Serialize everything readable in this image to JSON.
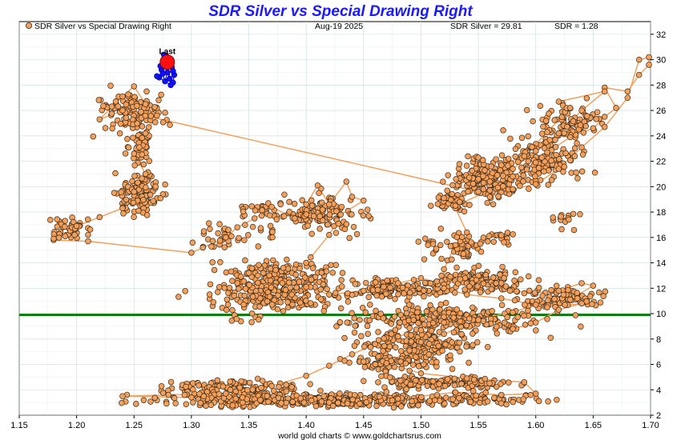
{
  "chart_data": {
    "type": "scatter",
    "title": "SDR Silver vs Special Drawing Right",
    "legend_label": "SDR Silver vs Special Drawing Right",
    "legend_placement": "top-left",
    "date_label": "Aug-19  2025",
    "silver_readout": "SDR Silver = 29.81",
    "sdr_readout": "SDR = 1.28",
    "last_label": "Last",
    "credit": "world gold charts © www.goldchartsrus.com",
    "xlim": [
      1.15,
      1.7
    ],
    "ylim": [
      2,
      33
    ],
    "x_ticks": [
      "1.15",
      "1.20",
      "1.25",
      "1.30",
      "1.35",
      "1.40",
      "1.45",
      "1.50",
      "1.55",
      "1.60",
      "1.65",
      "1.70"
    ],
    "y_ticks": [
      "2",
      "4",
      "6",
      "8",
      "10",
      "12",
      "14",
      "16",
      "18",
      "20",
      "22",
      "24",
      "26",
      "28",
      "30",
      "32"
    ],
    "grid": true,
    "reference_line_y": 9.9,
    "colors": {
      "points_fill": "#f5a05a",
      "points_stroke": "#3a2a1a",
      "trail_line": "#f5a05a",
      "recent_points": "#1010ff",
      "last_point": "#ff1010",
      "reference_line": "#0a7a0a",
      "title": "#1a1aff",
      "grid": "#c8dcdc"
    },
    "last_point": {
      "x": 1.279,
      "y": 29.81
    },
    "recent_points": [
      [
        1.272,
        28.6
      ],
      [
        1.274,
        29.2
      ],
      [
        1.276,
        29.8
      ],
      [
        1.278,
        30.3
      ],
      [
        1.281,
        29.9
      ],
      [
        1.283,
        29.4
      ],
      [
        1.285,
        28.8
      ],
      [
        1.284,
        28.2
      ],
      [
        1.281,
        28.5
      ],
      [
        1.279,
        29.0
      ],
      [
        1.277,
        28.3
      ],
      [
        1.275,
        28.9
      ],
      [
        1.273,
        29.5
      ],
      [
        1.276,
        30.4
      ],
      [
        1.279,
        30.1
      ],
      [
        1.282,
        28.0
      ],
      [
        1.27,
        28.7
      ],
      [
        1.284,
        29.1
      ]
    ],
    "trail_path": [
      [
        1.18,
        15.8
      ],
      [
        1.21,
        15.7
      ],
      [
        1.3,
        14.8
      ],
      [
        1.31,
        15.2
      ],
      [
        1.33,
        16.0
      ],
      [
        1.34,
        16.8
      ],
      [
        1.355,
        17.5
      ],
      [
        1.37,
        18.4
      ],
      [
        1.39,
        17.5
      ],
      [
        1.4,
        18.6
      ],
      [
        1.41,
        20.1
      ],
      [
        1.42,
        18.6
      ],
      [
        1.435,
        20.4
      ],
      [
        1.44,
        19.2
      ],
      [
        1.45,
        18.9
      ],
      [
        1.43,
        17.8
      ],
      [
        1.42,
        16.2
      ],
      [
        1.4,
        14.0
      ],
      [
        1.38,
        13.6
      ],
      [
        1.35,
        13.2
      ],
      [
        1.34,
        12.4
      ],
      [
        1.36,
        11.2
      ],
      [
        1.38,
        10.2
      ],
      [
        1.4,
        12.1
      ],
      [
        1.42,
        11.5
      ],
      [
        1.45,
        11.8
      ],
      [
        1.48,
        12.4
      ],
      [
        1.5,
        12.8
      ],
      [
        1.52,
        12.3
      ],
      [
        1.55,
        13.0
      ],
      [
        1.57,
        12.4
      ],
      [
        1.59,
        11.6
      ],
      [
        1.62,
        11.8
      ],
      [
        1.64,
        12.4
      ],
      [
        1.65,
        12.2
      ],
      [
        1.63,
        11.1
      ],
      [
        1.6,
        10.7
      ],
      [
        1.58,
        10.1
      ],
      [
        1.55,
        9.6
      ],
      [
        1.52,
        9.3
      ],
      [
        1.5,
        8.7
      ],
      [
        1.48,
        8.2
      ],
      [
        1.46,
        7.6
      ],
      [
        1.44,
        6.8
      ],
      [
        1.42,
        5.9
      ],
      [
        1.4,
        5.1
      ],
      [
        1.37,
        4.3
      ],
      [
        1.33,
        3.7
      ],
      [
        1.28,
        3.6
      ],
      [
        1.24,
        3.5
      ],
      [
        1.3,
        3.4
      ],
      [
        1.36,
        3.2
      ],
      [
        1.42,
        3.0
      ],
      [
        1.48,
        3.3
      ],
      [
        1.53,
        3.8
      ],
      [
        1.57,
        3.6
      ],
      [
        1.6,
        3.7
      ],
      [
        1.59,
        4.6
      ],
      [
        1.54,
        4.9
      ],
      [
        1.5,
        5.3
      ],
      [
        1.47,
        6.1
      ],
      [
        1.49,
        7.1
      ],
      [
        1.52,
        8.4
      ],
      [
        1.55,
        9.5
      ],
      [
        1.58,
        8.8
      ],
      [
        1.6,
        9.3
      ],
      [
        1.62,
        10.3
      ],
      [
        1.64,
        10.8
      ],
      [
        1.61,
        10.5
      ],
      [
        1.57,
        11.2
      ],
      [
        1.54,
        11.5
      ],
      [
        1.52,
        12.0
      ],
      [
        1.52,
        13.5
      ],
      [
        1.53,
        15.4
      ],
      [
        1.54,
        16.4
      ],
      [
        1.53,
        18.3
      ],
      [
        1.52,
        19.1
      ],
      [
        1.53,
        18.5
      ],
      [
        1.56,
        19.7
      ],
      [
        1.58,
        20.8
      ],
      [
        1.6,
        21.9
      ],
      [
        1.61,
        22.7
      ],
      [
        1.63,
        23.9
      ],
      [
        1.65,
        24.6
      ],
      [
        1.66,
        25.5
      ],
      [
        1.67,
        26.2
      ],
      [
        1.66,
        27.8
      ],
      [
        1.68,
        27.5
      ],
      [
        1.69,
        28.8
      ],
      [
        1.7,
        29.6
      ],
      [
        1.71,
        30.2
      ],
      [
        1.69,
        30.0
      ],
      [
        1.68,
        27.0
      ],
      [
        1.66,
        24.7
      ],
      [
        1.64,
        23.1
      ],
      [
        1.62,
        21.4
      ],
      [
        1.6,
        20.2
      ],
      [
        1.58,
        19.8
      ],
      [
        1.56,
        19.2
      ],
      [
        1.55,
        20.6
      ],
      [
        1.57,
        21.7
      ],
      [
        1.59,
        22.4
      ],
      [
        1.61,
        24.3
      ],
      [
        1.63,
        26.2
      ],
      [
        1.62,
        26.7
      ],
      [
        1.66,
        27.5
      ],
      [
        1.64,
        26.0
      ],
      [
        1.62,
        24.2
      ],
      [
        1.6,
        22.8
      ],
      [
        1.58,
        21.4
      ],
      [
        1.56,
        20.4
      ],
      [
        1.55,
        19.6
      ],
      [
        1.24,
        26.0
      ],
      [
        1.22,
        25.3
      ],
      [
        1.24,
        27.1
      ],
      [
        1.25,
        27.9
      ],
      [
        1.26,
        26.5
      ],
      [
        1.27,
        25.6
      ],
      [
        1.26,
        24.2
      ],
      [
        1.25,
        22.6
      ],
      [
        1.26,
        21.0
      ],
      [
        1.25,
        19.6
      ],
      [
        1.24,
        18.3
      ],
      [
        1.22,
        17.6
      ],
      [
        1.2,
        16.9
      ],
      [
        1.19,
        16.1
      ],
      [
        1.18,
        15.9
      ]
    ],
    "clusters": [
      {
        "cx": 1.25,
        "cy": 26.0,
        "rx": 0.03,
        "ry": 1.6,
        "n": 110
      },
      {
        "cx": 1.255,
        "cy": 23.2,
        "rx": 0.01,
        "ry": 1.6,
        "n": 50
      },
      {
        "cx": 1.255,
        "cy": 19.3,
        "rx": 0.018,
        "ry": 1.5,
        "n": 120
      },
      {
        "cx": 1.195,
        "cy": 16.6,
        "rx": 0.018,
        "ry": 1.0,
        "n": 40
      },
      {
        "cx": 1.33,
        "cy": 16.1,
        "rx": 0.03,
        "ry": 1.2,
        "n": 35
      },
      {
        "cx": 1.36,
        "cy": 18.2,
        "rx": 0.025,
        "ry": 0.6,
        "n": 25
      },
      {
        "cx": 1.41,
        "cy": 17.8,
        "rx": 0.045,
        "ry": 1.4,
        "n": 130
      },
      {
        "cx": 1.38,
        "cy": 13.2,
        "rx": 0.05,
        "ry": 1.0,
        "n": 120
      },
      {
        "cx": 1.37,
        "cy": 11.5,
        "rx": 0.06,
        "ry": 1.2,
        "n": 200
      },
      {
        "cx": 1.35,
        "cy": 9.8,
        "rx": 0.02,
        "ry": 0.5,
        "n": 10
      },
      {
        "cx": 1.48,
        "cy": 12.0,
        "rx": 0.05,
        "ry": 0.8,
        "n": 120
      },
      {
        "cx": 1.55,
        "cy": 12.6,
        "rx": 0.04,
        "ry": 1.0,
        "n": 120
      },
      {
        "cx": 1.62,
        "cy": 11.3,
        "rx": 0.04,
        "ry": 0.8,
        "n": 90
      },
      {
        "cx": 1.52,
        "cy": 9.6,
        "rx": 0.08,
        "ry": 1.0,
        "n": 220
      },
      {
        "cx": 1.5,
        "cy": 7.8,
        "rx": 0.05,
        "ry": 1.0,
        "n": 150
      },
      {
        "cx": 1.48,
        "cy": 6.2,
        "rx": 0.05,
        "ry": 0.8,
        "n": 90
      },
      {
        "cx": 1.52,
        "cy": 4.6,
        "rx": 0.06,
        "ry": 0.5,
        "n": 130
      },
      {
        "cx": 1.34,
        "cy": 4.2,
        "rx": 0.06,
        "ry": 0.6,
        "n": 110
      },
      {
        "cx": 1.4,
        "cy": 3.2,
        "rx": 0.12,
        "ry": 0.5,
        "n": 420
      },
      {
        "cx": 1.55,
        "cy": 3.3,
        "rx": 0.05,
        "ry": 0.4,
        "n": 70
      },
      {
        "cx": 1.56,
        "cy": 20.7,
        "rx": 0.035,
        "ry": 1.6,
        "n": 180
      },
      {
        "cx": 1.525,
        "cy": 18.8,
        "rx": 0.015,
        "ry": 0.7,
        "n": 40
      },
      {
        "cx": 1.53,
        "cy": 15.3,
        "rx": 0.03,
        "ry": 1.2,
        "n": 60
      },
      {
        "cx": 1.57,
        "cy": 16.0,
        "rx": 0.012,
        "ry": 0.6,
        "n": 15
      },
      {
        "cx": 1.61,
        "cy": 22.2,
        "rx": 0.035,
        "ry": 2.0,
        "n": 120
      },
      {
        "cx": 1.63,
        "cy": 25.2,
        "rx": 0.03,
        "ry": 1.4,
        "n": 80
      },
      {
        "cx": 1.625,
        "cy": 17.4,
        "rx": 0.012,
        "ry": 0.7,
        "n": 15
      }
    ]
  }
}
